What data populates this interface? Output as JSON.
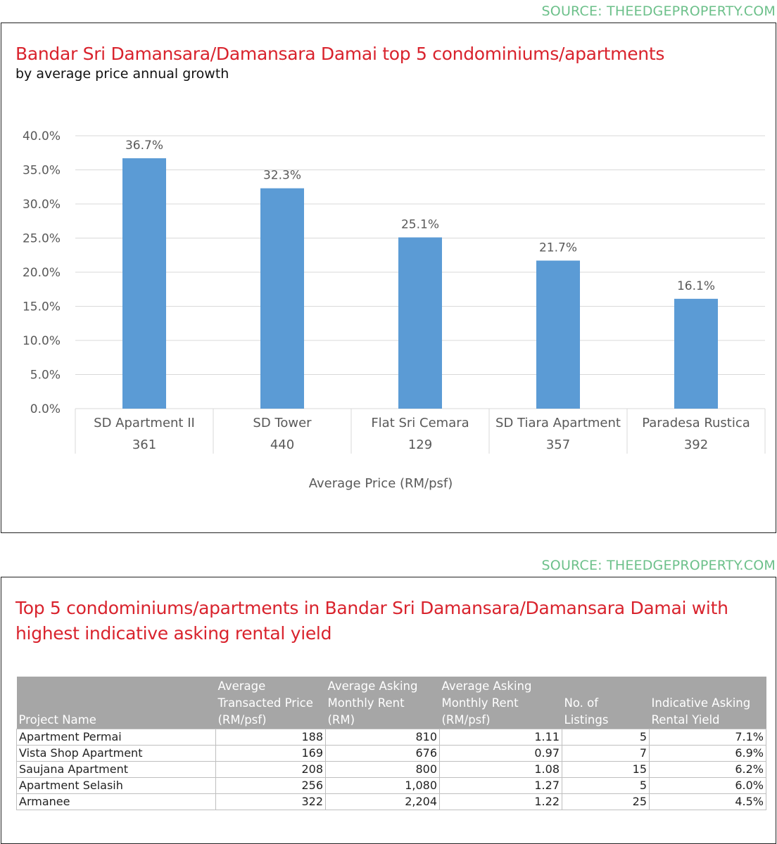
{
  "source_label": "SOURCE: THEEDGEPROPERTY.COM",
  "chart_section": {
    "title": "Bandar Sri Damansara/Damansara Damai top 5 condominiums/apartments",
    "subtitle": "by average price annual growth"
  },
  "chart_data": {
    "type": "bar",
    "title": "Bandar Sri Damansara/Damansara Damai top 5 condominiums/apartments",
    "subtitle": "by average price annual growth",
    "xlabel": "Average Price (RM/psf)",
    "ylabel": "",
    "categories": [
      "SD Apartment II",
      "SD Tower",
      "Flat Sri Cemara",
      "SD Tiara Apartment",
      "Paradesa Rustica"
    ],
    "category_sublabels": [
      "361",
      "440",
      "129",
      "357",
      "392"
    ],
    "values": [
      36.7,
      32.3,
      25.1,
      21.7,
      16.1
    ],
    "data_labels": [
      "36.7%",
      "32.3%",
      "25.1%",
      "21.7%",
      "16.1%"
    ],
    "ylim": [
      0,
      40
    ],
    "yticks": [
      0,
      5,
      10,
      15,
      20,
      25,
      30,
      35,
      40
    ],
    "ytick_labels": [
      "0.0%",
      "5.0%",
      "10.0%",
      "15.0%",
      "20.0%",
      "25.0%",
      "30.0%",
      "35.0%",
      "40.0%"
    ],
    "grid": true,
    "bar_color": "#5b9bd5",
    "legend": "none"
  },
  "table_section": {
    "title_line1": "Top 5 condominiums/apartments in Bandar Sri Damansara/Damansara Damai with",
    "title_line2": "highest indicative asking rental yield",
    "headers": [
      [
        "",
        "",
        "Project Name"
      ],
      [
        "Average",
        "Transacted Price",
        "(RM/psf)"
      ],
      [
        "Average Asking",
        "Monthly Rent",
        "(RM)"
      ],
      [
        "Average Asking",
        "Monthly Rent",
        "(RM/psf)"
      ],
      [
        "",
        "No. of",
        "Listings"
      ],
      [
        "",
        "Indicative Asking",
        "Rental Yield"
      ]
    ],
    "rows": [
      [
        "Apartment Permai",
        "188",
        "810",
        "1.11",
        "5",
        "7.1%"
      ],
      [
        "Vista Shop Apartment",
        "169",
        "676",
        "0.97",
        "7",
        "6.9%"
      ],
      [
        "Saujana Apartment",
        "208",
        "800",
        "1.08",
        "15",
        "6.2%"
      ],
      [
        "Apartment Selasih",
        "256",
        "1,080",
        "1.27",
        "5",
        "6.0%"
      ],
      [
        "Armanee",
        "322",
        "2,204",
        "1.22",
        "25",
        "4.5%"
      ]
    ]
  },
  "colors": {
    "title_red": "#d9232d",
    "source_green": "#6cc08a",
    "header_grey": "#a6a6a6",
    "bar_blue": "#5b9bd5"
  }
}
